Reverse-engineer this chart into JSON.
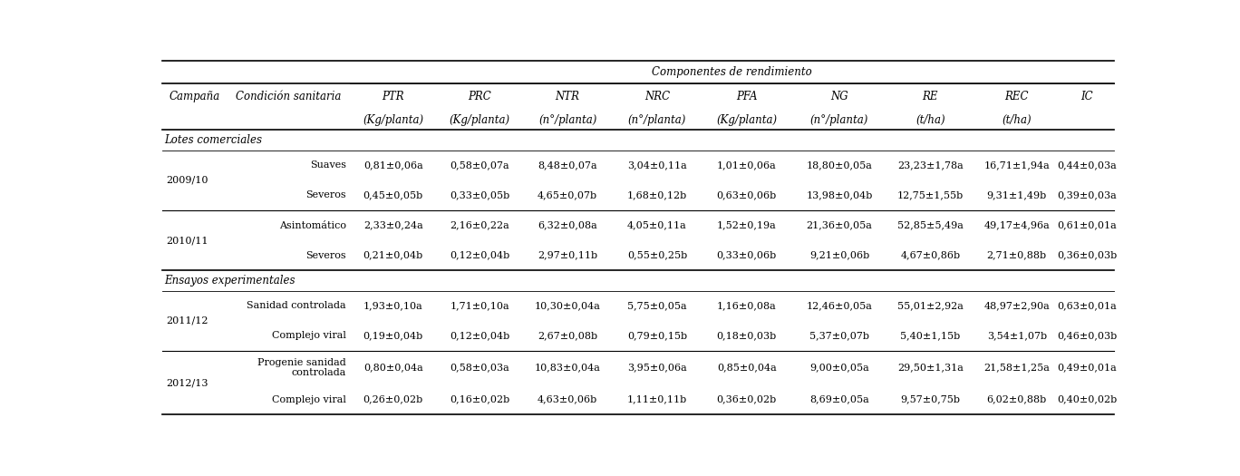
{
  "title": "Componentes de rendimiento",
  "section_lotes": "Lotes comerciales",
  "section_ensayos": "Ensayos experimentales",
  "col_names": [
    "Campaña",
    "Condición sanitaria",
    "PTR",
    "PRC",
    "NTR",
    "NRC",
    "PFA",
    "NG",
    "RE",
    "REC",
    "IC"
  ],
  "col_subnames": [
    "",
    "",
    "(Kg/planta)",
    "(Kg/planta)",
    "(n°/planta)",
    "(n°/planta)",
    "(Kg/planta)",
    "(n°/planta)",
    "(t/ha)",
    "(t/ha)",
    ""
  ],
  "rows": [
    {
      "campana": "2009/10",
      "condicion": "Suaves",
      "PTR": "0,81±0,06a",
      "PRC": "0,58±0,07a",
      "NTR": "8,48±0,07a",
      "NRC": "3,04±0,11a",
      "PFA": "1,01±0,06a",
      "NG": "18,80±0,05a",
      "RE": "23,23±1,78a",
      "REC": "16,71±1,94a",
      "IC": "0,44±0,03a"
    },
    {
      "campana": "",
      "condicion": "Severos",
      "PTR": "0,45±0,05b",
      "PRC": "0,33±0,05b",
      "NTR": "4,65±0,07b",
      "NRC": "1,68±0,12b",
      "PFA": "0,63±0,06b",
      "NG": "13,98±0,04b",
      "RE": "12,75±1,55b",
      "REC": "9,31±1,49b",
      "IC": "0,39±0,03a"
    },
    {
      "campana": "2010/11",
      "condicion": "Asintomático",
      "PTR": "2,33±0,24a",
      "PRC": "2,16±0,22a",
      "NTR": "6,32±0,08a",
      "NRC": "4,05±0,11a",
      "PFA": "1,52±0,19a",
      "NG": "21,36±0,05a",
      "RE": "52,85±5,49a",
      "REC": "49,17±4,96a",
      "IC": "0,61±0,01a"
    },
    {
      "campana": "",
      "condicion": "Severos",
      "PTR": "0,21±0,04b",
      "PRC": "0,12±0,04b",
      "NTR": "2,97±0,11b",
      "NRC": "0,55±0,25b",
      "PFA": "0,33±0,06b",
      "NG": "9,21±0,06b",
      "RE": "4,67±0,86b",
      "REC": "2,71±0,88b",
      "IC": "0,36±0,03b"
    },
    {
      "campana": "2011/12",
      "condicion": "Sanidad controlada",
      "PTR": "1,93±0,10a",
      "PRC": "1,71±0,10a",
      "NTR": "10,30±0,04a",
      "NRC": "5,75±0,05a",
      "PFA": "1,16±0,08a",
      "NG": "12,46±0,05a",
      "RE": "55,01±2,92a",
      "REC": "48,97±2,90a",
      "IC": "0,63±0,01a"
    },
    {
      "campana": "",
      "condicion": "Complejo viral",
      "PTR": "0,19±0,04b",
      "PRC": "0,12±0,04b",
      "NTR": "2,67±0,08b",
      "NRC": "0,79±0,15b",
      "PFA": "0,18±0,03b",
      "NG": "5,37±0,07b",
      "RE": "5,40±1,15b",
      "REC": "3,54±1,07b",
      "IC": "0,46±0,03b"
    },
    {
      "campana": "2012/13",
      "condicion": "Progenie sanidad\ncontrolada",
      "PTR": "0,80±0,04a",
      "PRC": "0,58±0,03a",
      "NTR": "10,83±0,04a",
      "NRC": "3,95±0,06a",
      "PFA": "0,85±0,04a",
      "NG": "9,00±0,05a",
      "RE": "29,50±1,31a",
      "REC": "21,58±1,25a",
      "IC": "0,49±0,01a"
    },
    {
      "campana": "",
      "condicion": "Complejo viral",
      "PTR": "0,26±0,02b",
      "PRC": "0,16±0,02b",
      "NTR": "4,63±0,06b",
      "NRC": "1,11±0,11b",
      "PFA": "0,36±0,02b",
      "NG": "8,69±0,05a",
      "RE": "9,57±0,75b",
      "REC": "6,02±0,88b",
      "IC": "0,40±0,02b"
    }
  ],
  "bg_color": "#ffffff",
  "font_size": 8.0,
  "header_font_size": 8.5
}
